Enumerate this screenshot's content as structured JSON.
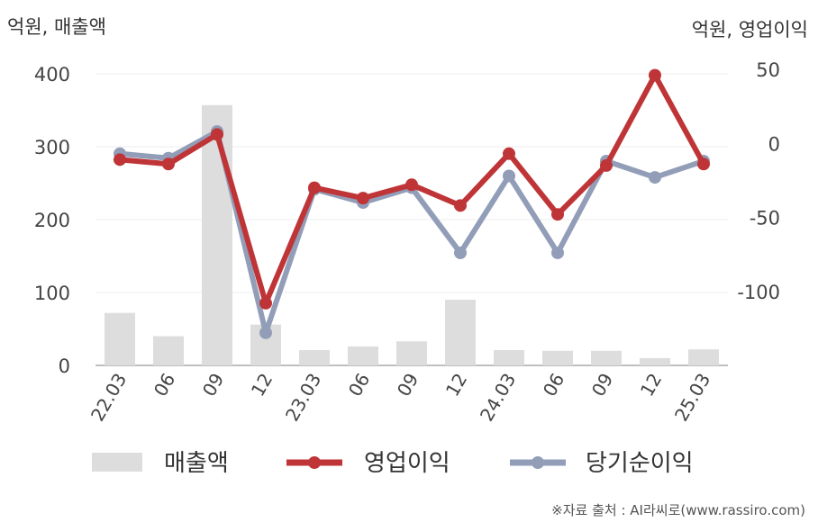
{
  "units": {
    "left": "억원, 매출액",
    "right": "억원, 영업이익"
  },
  "source": "※자료 출처 : AI라씨로(www.rassiro.com)",
  "legend": [
    {
      "label": "매출액",
      "color": "#dddddd",
      "kind": "bar"
    },
    {
      "label": "영업이익",
      "color": "#bf3537",
      "kind": "line"
    },
    {
      "label": "당기순이익",
      "color": "#929db8",
      "kind": "line"
    }
  ],
  "chart_data": {
    "type": "bar",
    "categories": [
      "22.03",
      "06",
      "09",
      "12",
      "23.03",
      "06",
      "09",
      "12",
      "24.03",
      "06",
      "09",
      "12",
      "25.03"
    ],
    "left_axis": {
      "ylim": [
        0,
        400
      ],
      "ticks": [
        0,
        100,
        200,
        300,
        400
      ]
    },
    "right_axis": {
      "ylim": [
        -150,
        50
      ],
      "ticks": [
        -100,
        -50,
        0,
        50
      ]
    },
    "series": [
      {
        "name": "매출액",
        "type": "bar",
        "axis": "left",
        "color": "#dddddd",
        "values": [
          72,
          40,
          357,
          56,
          21,
          26,
          33,
          90,
          21,
          20,
          20,
          10,
          22
        ]
      },
      {
        "name": "영업이익",
        "type": "line",
        "axis": "right",
        "color": "#bf3537",
        "values": [
          -11,
          -14,
          6,
          -108,
          -30,
          -37,
          -28,
          -42,
          -7,
          -48,
          -15,
          46,
          -14
        ]
      },
      {
        "name": "당기순이익",
        "type": "line",
        "axis": "right",
        "color": "#929db8",
        "values": [
          -7,
          -10,
          8,
          -128,
          -31,
          -40,
          -30,
          -74,
          -22,
          -74,
          -12,
          -23,
          -12
        ]
      }
    ],
    "grid": true
  }
}
